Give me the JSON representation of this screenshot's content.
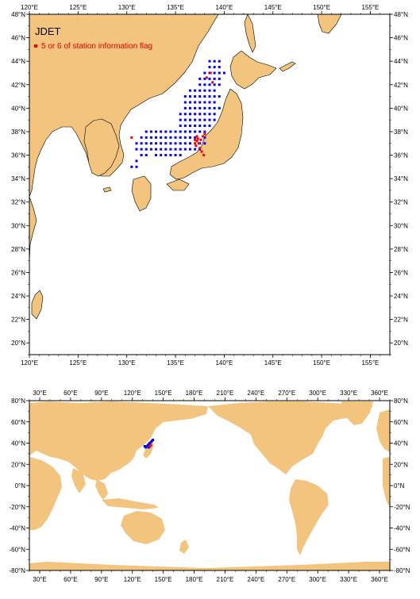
{
  "top_map": {
    "title": "JDET",
    "legend_label": "5 or 6 of station information flag",
    "legend_color": "#ff0000",
    "station_color": "#0000ff",
    "lon_ticks": [
      "120°E",
      "125°E",
      "130°E",
      "135°E",
      "140°E",
      "145°E",
      "150°E",
      "155°E"
    ],
    "lat_ticks": [
      "20°N",
      "22°N",
      "24°N",
      "26°N",
      "28°N",
      "30°N",
      "32°N",
      "34°N",
      "36°N",
      "38°N",
      "40°N",
      "42°N",
      "44°N",
      "46°N",
      "48°N"
    ],
    "lon_range": [
      120,
      157
    ],
    "lat_range": [
      19,
      48
    ],
    "stations_blue": [
      [
        131.0,
        37.0
      ],
      [
        131.5,
        37.0
      ],
      [
        132.0,
        37.0
      ],
      [
        132.5,
        37.0
      ],
      [
        133.0,
        37.0
      ],
      [
        133.5,
        37.0
      ],
      [
        134.0,
        37.0
      ],
      [
        134.5,
        37.0
      ],
      [
        135.0,
        37.0
      ],
      [
        135.5,
        37.0
      ],
      [
        136.0,
        37.0
      ],
      [
        136.5,
        37.0
      ],
      [
        131.5,
        37.5
      ],
      [
        132.0,
        37.5
      ],
      [
        132.5,
        37.5
      ],
      [
        133.0,
        37.5
      ],
      [
        133.5,
        37.5
      ],
      [
        134.0,
        37.5
      ],
      [
        134.5,
        37.5
      ],
      [
        135.0,
        37.5
      ],
      [
        135.5,
        37.5
      ],
      [
        136.0,
        37.5
      ],
      [
        136.5,
        37.5
      ],
      [
        137.0,
        37.5
      ],
      [
        132.0,
        38.0
      ],
      [
        132.5,
        38.0
      ],
      [
        133.0,
        38.0
      ],
      [
        133.5,
        38.0
      ],
      [
        134.0,
        38.0
      ],
      [
        134.5,
        38.0
      ],
      [
        135.0,
        38.0
      ],
      [
        135.5,
        38.0
      ],
      [
        136.0,
        38.0
      ],
      [
        136.5,
        38.0
      ],
      [
        137.0,
        38.0
      ],
      [
        137.5,
        38.0
      ],
      [
        138.0,
        38.0
      ],
      [
        132.5,
        36.5
      ],
      [
        133.0,
        36.5
      ],
      [
        133.5,
        36.5
      ],
      [
        134.0,
        36.5
      ],
      [
        134.5,
        36.5
      ],
      [
        135.0,
        36.5
      ],
      [
        135.5,
        36.5
      ],
      [
        136.0,
        36.5
      ],
      [
        133.0,
        36.0
      ],
      [
        133.5,
        36.0
      ],
      [
        134.0,
        36.0
      ],
      [
        134.5,
        36.0
      ],
      [
        135.0,
        36.0
      ],
      [
        135.5,
        36.0
      ],
      [
        131.0,
        35.5
      ],
      [
        131.5,
        36.0
      ],
      [
        132.0,
        36.0
      ],
      [
        131.0,
        36.5
      ],
      [
        131.5,
        36.5
      ],
      [
        132.0,
        36.5
      ],
      [
        135.5,
        38.5
      ],
      [
        136.0,
        38.5
      ],
      [
        136.5,
        38.5
      ],
      [
        137.0,
        38.5
      ],
      [
        137.5,
        38.5
      ],
      [
        138.0,
        38.5
      ],
      [
        138.5,
        38.5
      ],
      [
        135.5,
        39.0
      ],
      [
        136.0,
        39.0
      ],
      [
        136.5,
        39.0
      ],
      [
        137.0,
        39.0
      ],
      [
        137.5,
        39.0
      ],
      [
        138.0,
        39.0
      ],
      [
        138.5,
        39.0
      ],
      [
        139.0,
        39.0
      ],
      [
        135.5,
        39.5
      ],
      [
        136.0,
        39.5
      ],
      [
        136.5,
        39.5
      ],
      [
        137.0,
        39.5
      ],
      [
        137.5,
        39.5
      ],
      [
        138.0,
        39.5
      ],
      [
        138.5,
        39.5
      ],
      [
        139.0,
        39.5
      ],
      [
        136.0,
        40.0
      ],
      [
        136.5,
        40.0
      ],
      [
        137.0,
        40.0
      ],
      [
        137.5,
        40.0
      ],
      [
        138.0,
        40.0
      ],
      [
        138.5,
        40.0
      ],
      [
        139.0,
        40.0
      ],
      [
        139.5,
        40.0
      ],
      [
        136.0,
        40.5
      ],
      [
        136.5,
        40.5
      ],
      [
        137.0,
        40.5
      ],
      [
        137.5,
        40.5
      ],
      [
        138.0,
        40.5
      ],
      [
        138.5,
        40.5
      ],
      [
        139.0,
        40.5
      ],
      [
        136.0,
        41.0
      ],
      [
        136.5,
        41.0
      ],
      [
        137.0,
        41.0
      ],
      [
        137.5,
        41.0
      ],
      [
        138.0,
        41.0
      ],
      [
        138.5,
        41.0
      ],
      [
        139.0,
        41.0
      ],
      [
        139.5,
        41.0
      ],
      [
        136.5,
        41.5
      ],
      [
        137.0,
        41.5
      ],
      [
        137.5,
        41.5
      ],
      [
        138.0,
        41.5
      ],
      [
        138.5,
        41.5
      ],
      [
        139.0,
        41.5
      ],
      [
        137.5,
        42.0
      ],
      [
        138.0,
        42.0
      ],
      [
        138.5,
        42.0
      ],
      [
        139.0,
        42.0
      ],
      [
        139.5,
        42.0
      ],
      [
        137.5,
        42.5
      ],
      [
        138.0,
        42.5
      ],
      [
        138.5,
        42.5
      ],
      [
        139.0,
        42.5
      ],
      [
        139.5,
        42.5
      ],
      [
        138.0,
        43.0
      ],
      [
        138.5,
        43.0
      ],
      [
        139.0,
        43.0
      ],
      [
        139.5,
        43.0
      ],
      [
        140.0,
        43.0
      ],
      [
        138.5,
        43.5
      ],
      [
        139.0,
        43.5
      ],
      [
        139.5,
        43.5
      ],
      [
        138.5,
        44.0
      ],
      [
        139.0,
        44.0
      ],
      [
        139.5,
        44.0
      ],
      [
        136.5,
        36.5
      ],
      [
        137.0,
        36.5
      ],
      [
        137.5,
        36.5
      ],
      [
        137.5,
        37.0
      ],
      [
        138.0,
        37.0
      ],
      [
        138.0,
        37.5
      ],
      [
        130.5,
        35.0
      ],
      [
        131.0,
        35.0
      ]
    ],
    "stations_red": [
      [
        137.0,
        37.0
      ],
      [
        137.2,
        37.2
      ],
      [
        137.4,
        37.0
      ],
      [
        137.1,
        36.8
      ],
      [
        137.3,
        37.4
      ],
      [
        137.6,
        37.3
      ],
      [
        137.8,
        37.6
      ],
      [
        138.0,
        37.8
      ],
      [
        137.5,
        36.6
      ],
      [
        137.7,
        36.3
      ],
      [
        137.9,
        36.0
      ],
      [
        130.5,
        37.5
      ],
      [
        138.8,
        42.2
      ],
      [
        138.2,
        42.6
      ],
      [
        138.6,
        43.0
      ],
      [
        137.2,
        37.6
      ],
      [
        137.0,
        37.3
      ]
    ]
  },
  "bottom_map": {
    "lon_ticks": [
      "30°E",
      "60°E",
      "90°E",
      "120°E",
      "150°E",
      "180°E",
      "210°E",
      "240°E",
      "270°E",
      "300°E",
      "330°E",
      "360°E"
    ],
    "lat_ticks": [
      "-80°N",
      "-60°N",
      "-40°N",
      "-20°N",
      "0°N",
      "20°N",
      "40°N",
      "60°N",
      "80°N"
    ],
    "lon_range": [
      20,
      370
    ],
    "lat_range": [
      -80,
      80
    ],
    "stations_blue": [
      [
        134,
        37
      ],
      [
        135,
        38
      ],
      [
        136,
        39
      ],
      [
        137,
        40
      ],
      [
        138,
        41
      ],
      [
        139,
        42
      ],
      [
        140,
        43
      ],
      [
        133,
        36
      ],
      [
        132,
        37
      ],
      [
        136,
        36
      ]
    ],
    "stations_red": [
      [
        137,
        37
      ],
      [
        138,
        38
      ]
    ]
  }
}
